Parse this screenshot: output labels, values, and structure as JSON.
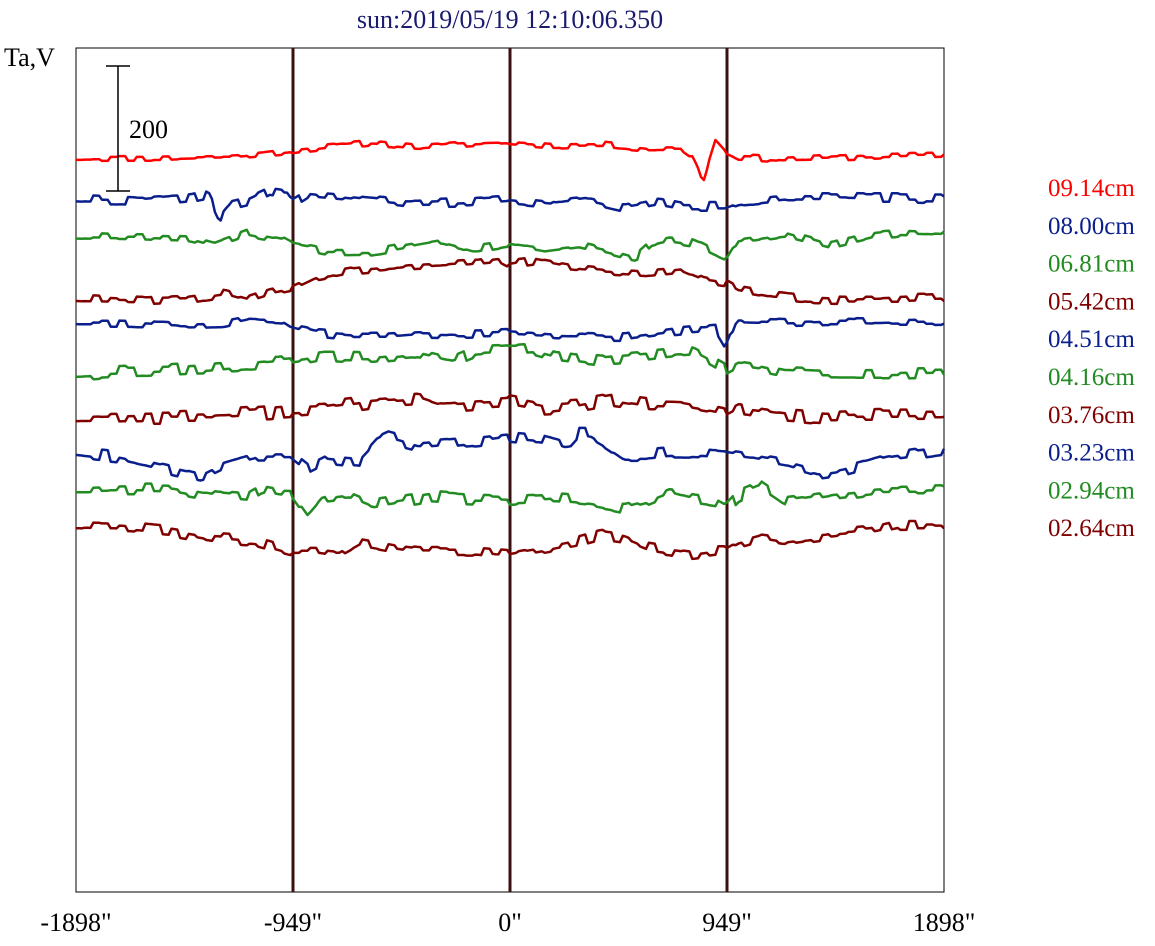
{
  "chart_data": {
    "type": "line",
    "title": "sun:2019/05/19 12:10:06.350",
    "ylabel": "Ta,V",
    "scale_bar_label": "200",
    "x_ticks": [
      "-1898\"",
      "-949\"",
      "0\"",
      "949\"",
      "1898\""
    ],
    "x_tick_values": [
      -1898,
      -949,
      0,
      949,
      1898
    ],
    "xlim": [
      -1898,
      1898
    ],
    "vertical_markers": [
      -949,
      0,
      949
    ],
    "scale_bar_value": 200,
    "series": [
      {
        "name": "09.14cm",
        "color": "#ff0000",
        "baseline": -10,
        "noise": 5,
        "seed": 11,
        "x": [
          -1898,
          -1500,
          -1200,
          -1000,
          -800,
          -600,
          -400,
          -200,
          0,
          200,
          400,
          600,
          750,
          800,
          845,
          900,
          949,
          1000,
          1200,
          1500,
          1898
        ],
        "y": [
          0,
          0,
          3,
          10,
          18,
          25,
          18,
          22,
          25,
          20,
          22,
          15,
          15,
          2,
          -35,
          30,
          10,
          2,
          -2,
          2,
          5
        ]
      },
      {
        "name": "08.00cm",
        "color": "#0b1f8c",
        "baseline": -75,
        "noise": 8,
        "seed": 22,
        "x": [
          -1898,
          -1600,
          -1400,
          -1320,
          -1270,
          -1230,
          -1150,
          -1050,
          -970,
          -949,
          -880,
          -700,
          -450,
          -200,
          0,
          200,
          350,
          500,
          650,
          750,
          850,
          949,
          1000,
          1200,
          1500,
          1898
        ],
        "y": [
          0,
          -3,
          2,
          8,
          -30,
          -12,
          -5,
          12,
          8,
          -8,
          8,
          2,
          -8,
          -5,
          0,
          -8,
          -2,
          -15,
          -5,
          -12,
          -12,
          -12,
          -5,
          3,
          2,
          0
        ]
      },
      {
        "name": "06.81cm",
        "color": "#228b22",
        "baseline": -135,
        "noise": 7,
        "seed": 33,
        "x": [
          -1898,
          -1600,
          -1400,
          -1300,
          -1150,
          -1000,
          -949,
          -800,
          -600,
          -450,
          -300,
          -150,
          0,
          150,
          300,
          450,
          550,
          620,
          700,
          800,
          949,
          1000,
          1200,
          1400,
          1600,
          1700,
          1898
        ],
        "y": [
          0,
          -2,
          -5,
          -15,
          5,
          -5,
          -15,
          -25,
          -25,
          -15,
          -5,
          -20,
          -12,
          -20,
          -12,
          -25,
          -35,
          -12,
          -5,
          -10,
          -35,
          -5,
          5,
          -15,
          2,
          5,
          2
        ]
      },
      {
        "name": "05.42cm",
        "color": "#800000",
        "baseline": -235,
        "noise": 7,
        "seed": 44,
        "x": [
          -1898,
          -1600,
          -1400,
          -1250,
          -1150,
          -1050,
          -949,
          -850,
          -700,
          -550,
          -400,
          -200,
          -50,
          0,
          100,
          250,
          400,
          600,
          750,
          850,
          949,
          1000,
          1150,
          1300,
          1500,
          1700,
          1898
        ],
        "y": [
          0,
          -3,
          0,
          8,
          -2,
          10,
          18,
          35,
          45,
          50,
          55,
          60,
          65,
          55,
          60,
          50,
          45,
          40,
          45,
          30,
          25,
          15,
          5,
          0,
          -2,
          0,
          3
        ]
      },
      {
        "name": "04.51cm",
        "color": "#0b1f8c",
        "baseline": -272,
        "noise": 7,
        "seed": 55,
        "x": [
          -1898,
          -1600,
          -1400,
          -1250,
          -1150,
          -1000,
          -949,
          -850,
          -700,
          -550,
          -400,
          -200,
          0,
          200,
          400,
          500,
          600,
          700,
          800,
          900,
          940,
          960,
          1000,
          1200,
          1400,
          1600,
          1898
        ],
        "y": [
          0,
          -2,
          -5,
          -3,
          5,
          2,
          -10,
          -18,
          -22,
          -22,
          -18,
          -20,
          -18,
          -22,
          -25,
          -25,
          -20,
          -15,
          -12,
          -10,
          -35,
          -15,
          2,
          0,
          2,
          0,
          2
        ]
      },
      {
        "name": "04.16cm",
        "color": "#228b22",
        "baseline": -355,
        "noise": 10,
        "seed": 66,
        "x": [
          -1898,
          -1600,
          -1300,
          -1100,
          -949,
          -800,
          -600,
          -400,
          -250,
          -150,
          0,
          100,
          200,
          400,
          600,
          700,
          800,
          880,
          949,
          1000,
          1100,
          1200,
          1400,
          1600,
          1898
        ],
        "y": [
          0,
          5,
          10,
          15,
          20,
          28,
          25,
          32,
          20,
          35,
          38,
          40,
          30,
          22,
          28,
          32,
          35,
          20,
          5,
          15,
          10,
          2,
          0,
          0,
          2
        ]
      },
      {
        "name": "03.76cm",
        "color": "#800000",
        "baseline": -425,
        "noise": 12,
        "seed": 77,
        "x": [
          -1898,
          -1600,
          -1300,
          -1100,
          -949,
          -800,
          -600,
          -400,
          -300,
          -150,
          0,
          150,
          300,
          450,
          600,
          750,
          880,
          949,
          1000,
          1200,
          1400,
          1600,
          1898
        ],
        "y": [
          0,
          2,
          3,
          8,
          12,
          15,
          25,
          30,
          18,
          22,
          25,
          15,
          18,
          28,
          20,
          18,
          10,
          5,
          15,
          5,
          0,
          2,
          2
        ]
      },
      {
        "name": "03.23cm",
        "color": "#0b1f8c",
        "baseline": -480,
        "noise": 10,
        "seed": 88,
        "x": [
          -1898,
          -1700,
          -1500,
          -1350,
          -1250,
          -1100,
          -949,
          -880,
          -800,
          -650,
          -550,
          -400,
          -250,
          -100,
          0,
          150,
          250,
          300,
          350,
          420,
          500,
          600,
          700,
          800,
          949,
          1050,
          1200,
          1350,
          1450,
          1550,
          1650,
          1750,
          1898
        ],
        "y": [
          0,
          -8,
          -25,
          -38,
          -20,
          -5,
          -5,
          -25,
          -10,
          -15,
          25,
          10,
          15,
          20,
          25,
          20,
          10,
          30,
          30,
          15,
          -5,
          -5,
          -2,
          -2,
          -5,
          -10,
          -20,
          -35,
          -30,
          -20,
          -10,
          -5,
          3
        ]
      },
      {
        "name": "02.94cm",
        "color": "#228b22",
        "baseline": -540,
        "noise": 10,
        "seed": 99,
        "x": [
          -1898,
          -1700,
          -1500,
          -1300,
          -1150,
          -1080,
          -1000,
          -949,
          -880,
          -820,
          -700,
          -600,
          -500,
          -350,
          -200,
          0,
          200,
          350,
          500,
          600,
          700,
          800,
          900,
          949,
          1000,
          1100,
          1200,
          1400,
          1600,
          1898
        ],
        "y": [
          0,
          2,
          2,
          -10,
          -15,
          0,
          -5,
          -5,
          -40,
          -15,
          -10,
          -25,
          -20,
          -12,
          -15,
          -18,
          -15,
          -20,
          -30,
          -20,
          -5,
          -15,
          -20,
          -30,
          -10,
          5,
          -20,
          -10,
          -2,
          0
        ]
      },
      {
        "name": "02.64cm",
        "color": "#800000",
        "baseline": -598,
        "noise": 9,
        "seed": 111,
        "x": [
          -1898,
          -1700,
          -1500,
          -1300,
          -1100,
          -949,
          -850,
          -750,
          -650,
          -500,
          -400,
          -300,
          -150,
          0,
          150,
          300,
          400,
          500,
          600,
          700,
          800,
          900,
          949,
          1000,
          1100,
          1200,
          1400,
          1600,
          1700,
          1898
        ],
        "y": [
          0,
          -2,
          -8,
          -20,
          -25,
          -40,
          -40,
          -45,
          -25,
          -35,
          -40,
          -40,
          -40,
          -45,
          -35,
          -25,
          -15,
          -20,
          -35,
          -40,
          -45,
          -40,
          -40,
          -30,
          -20,
          -25,
          -15,
          -8,
          0,
          0
        ]
      }
    ]
  }
}
